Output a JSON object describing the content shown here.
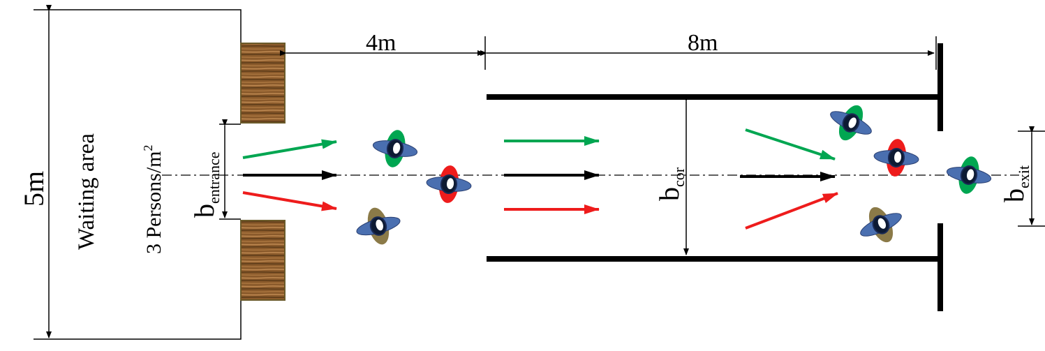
{
  "labels": {
    "total_height": "5m",
    "entrance_dist": "4m",
    "corridor_length": "8m",
    "waiting_area": "Waiting area",
    "density_prefix": "3 Persons/m",
    "density_sup": "2",
    "b": "b",
    "entrance_sub": "entrance",
    "cor_sub": "cor",
    "exit_sub": "exit"
  },
  "colors": {
    "line": "#000000",
    "green": "#00a651",
    "red": "#ee1c1c",
    "olive": "#8b7a48",
    "ped_blue": "#4a6fb0",
    "wood_dark": "#6b4a22",
    "wood_light": "#a8763f"
  },
  "pedestrians": [
    {
      "id": "ped-1",
      "color": "green"
    },
    {
      "id": "ped-2",
      "color": "red"
    },
    {
      "id": "ped-3",
      "color": "olive"
    },
    {
      "id": "ped-4",
      "color": "green"
    },
    {
      "id": "ped-5",
      "color": "red"
    },
    {
      "id": "ped-6",
      "color": "olive"
    },
    {
      "id": "ped-7",
      "color": "green"
    }
  ]
}
